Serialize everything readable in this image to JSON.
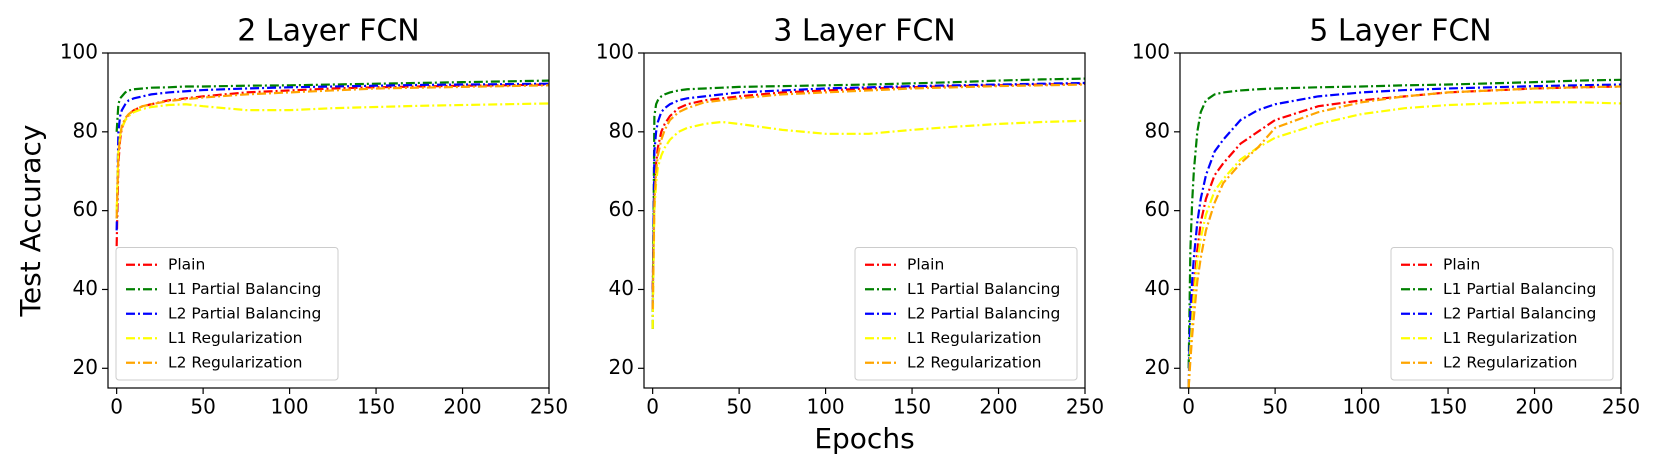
{
  "chart_data": [
    {
      "type": "line",
      "title": "2 Layer FCN",
      "ylabel": "Test Accuracy",
      "x": [
        0,
        1,
        2,
        3,
        5,
        7,
        10,
        15,
        20,
        30,
        40,
        50,
        75,
        100,
        125,
        150,
        175,
        200,
        225,
        250
      ],
      "series": [
        {
          "name": "Plain",
          "color": "#ff0000",
          "values": [
            51,
            72,
            78,
            81,
            83,
            84.5,
            85.5,
            86.5,
            87,
            88,
            88.5,
            89,
            90,
            90.5,
            91,
            91.3,
            91.5,
            91.7,
            91.8,
            92
          ]
        },
        {
          "name": "L1 Partial Balancing",
          "color": "#008000",
          "values": [
            80,
            87,
            88.5,
            89,
            90,
            90.5,
            90.8,
            91,
            91.2,
            91.3,
            91.5,
            91.5,
            91.7,
            91.8,
            92,
            92.2,
            92.4,
            92.6,
            92.8,
            93
          ]
        },
        {
          "name": "L2 Partial Balancing",
          "color": "#0000ff",
          "values": [
            55,
            80,
            84,
            85.5,
            87,
            88,
            88.5,
            89,
            89.5,
            90,
            90.3,
            90.6,
            91,
            91.3,
            91.5,
            91.7,
            91.9,
            92,
            92.1,
            92.2
          ]
        },
        {
          "name": "L1 Regularization",
          "color": "#ffff00",
          "values": [
            60,
            75,
            79,
            81,
            83,
            84,
            85,
            85.8,
            86.3,
            86.8,
            87,
            86.5,
            85.5,
            85.5,
            86,
            86.3,
            86.6,
            86.8,
            87,
            87.2
          ]
        },
        {
          "name": "L2 Regularization",
          "color": "#ffa500",
          "values": [
            58,
            74,
            79,
            81.5,
            83.5,
            84.5,
            85.5,
            86.5,
            87,
            87.8,
            88.3,
            88.7,
            89.5,
            90,
            90.5,
            91,
            91.2,
            91.4,
            91.6,
            91.8
          ]
        }
      ],
      "xlim": [
        -5,
        250
      ],
      "ylim": [
        15,
        100
      ],
      "xticks": [
        0,
        50,
        100,
        150,
        200,
        250
      ],
      "yticks": [
        20,
        40,
        60,
        80,
        100
      ],
      "legend": "lower left"
    },
    {
      "type": "line",
      "title": "3 Layer FCN",
      "xlabel": "Epochs",
      "x": [
        0,
        1,
        2,
        3,
        5,
        7,
        10,
        15,
        20,
        30,
        40,
        50,
        75,
        100,
        125,
        150,
        175,
        200,
        225,
        250
      ],
      "series": [
        {
          "name": "Plain",
          "color": "#ff0000",
          "values": [
            40,
            65,
            72,
            76,
            80,
            82,
            84,
            86,
            87,
            88,
            88.5,
            89,
            90,
            90.5,
            91,
            91.3,
            91.6,
            91.8,
            92,
            92.2
          ]
        },
        {
          "name": "L1 Partial Balancing",
          "color": "#008000",
          "values": [
            30,
            84,
            87,
            88,
            89,
            89.5,
            90,
            90.5,
            90.8,
            91,
            91.2,
            91.4,
            91.6,
            91.8,
            92,
            92.3,
            92.6,
            93,
            93.3,
            93.5
          ]
        },
        {
          "name": "L2 Partial Balancing",
          "color": "#0000ff",
          "values": [
            35,
            75,
            80,
            82.5,
            85,
            86,
            87,
            88,
            88.5,
            89,
            89.5,
            90,
            90.5,
            91,
            91.3,
            91.6,
            91.8,
            92,
            92.2,
            92.4
          ]
        },
        {
          "name": "L1 Regularization",
          "color": "#ffff00",
          "values": [
            30,
            60,
            67,
            71,
            74,
            76,
            78,
            80,
            81,
            82,
            82.5,
            82,
            80.5,
            79.5,
            79.5,
            80.5,
            81.3,
            82,
            82.5,
            82.8
          ]
        },
        {
          "name": "L2 Regularization",
          "color": "#ffa500",
          "values": [
            35,
            62,
            70,
            74,
            78,
            80.5,
            83,
            85,
            86,
            87.5,
            88,
            88.5,
            89.5,
            90,
            90.5,
            91,
            91.3,
            91.6,
            91.8,
            92
          ]
        }
      ],
      "xlim": [
        -5,
        250
      ],
      "ylim": [
        15,
        100
      ],
      "xticks": [
        0,
        50,
        100,
        150,
        200,
        250
      ],
      "yticks": [
        20,
        40,
        60,
        80,
        100
      ],
      "legend": "lower right"
    },
    {
      "type": "line",
      "title": "5 Layer FCN",
      "x": [
        0,
        1,
        2,
        3,
        5,
        7,
        10,
        15,
        20,
        30,
        40,
        50,
        75,
        100,
        125,
        150,
        175,
        200,
        225,
        250
      ],
      "series": [
        {
          "name": "Plain",
          "color": "#ff0000",
          "values": [
            15,
            25,
            33,
            40,
            50,
            57,
            63,
            69,
            72,
            77,
            80,
            83,
            86.5,
            88,
            89,
            90,
            90.5,
            91,
            91.3,
            91.5
          ]
        },
        {
          "name": "L1 Partial Balancing",
          "color": "#008000",
          "values": [
            20,
            50,
            62,
            70,
            80,
            85,
            88,
            89.5,
            90,
            90.5,
            90.8,
            91,
            91.3,
            91.5,
            91.8,
            92,
            92.3,
            92.6,
            93,
            93.2
          ]
        },
        {
          "name": "L2 Partial Balancing",
          "color": "#0000ff",
          "values": [
            15,
            35,
            42,
            48,
            57,
            63,
            69,
            75,
            78,
            83,
            85.5,
            87,
            89,
            90,
            90.6,
            91,
            91.3,
            91.6,
            91.8,
            92
          ]
        },
        {
          "name": "L1 Regularization",
          "color": "#ffff00",
          "values": [
            15,
            25,
            32,
            38,
            47,
            53,
            59,
            65,
            68,
            73,
            76,
            78.5,
            82,
            84.5,
            86,
            86.8,
            87.2,
            87.5,
            87.5,
            87.2
          ]
        },
        {
          "name": "L2 Regularization",
          "color": "#ffa500",
          "values": [
            15,
            22,
            28,
            33,
            42,
            48,
            55,
            62,
            67,
            72,
            76,
            81,
            85,
            87.5,
            89,
            90,
            90.5,
            91,
            91.3,
            91.5
          ]
        }
      ],
      "xlim": [
        -5,
        250
      ],
      "ylim": [
        15,
        100
      ],
      "xticks": [
        0,
        50,
        100,
        150,
        200,
        250
      ],
      "yticks": [
        20,
        40,
        60,
        80,
        100
      ],
      "legend": "lower right"
    }
  ]
}
